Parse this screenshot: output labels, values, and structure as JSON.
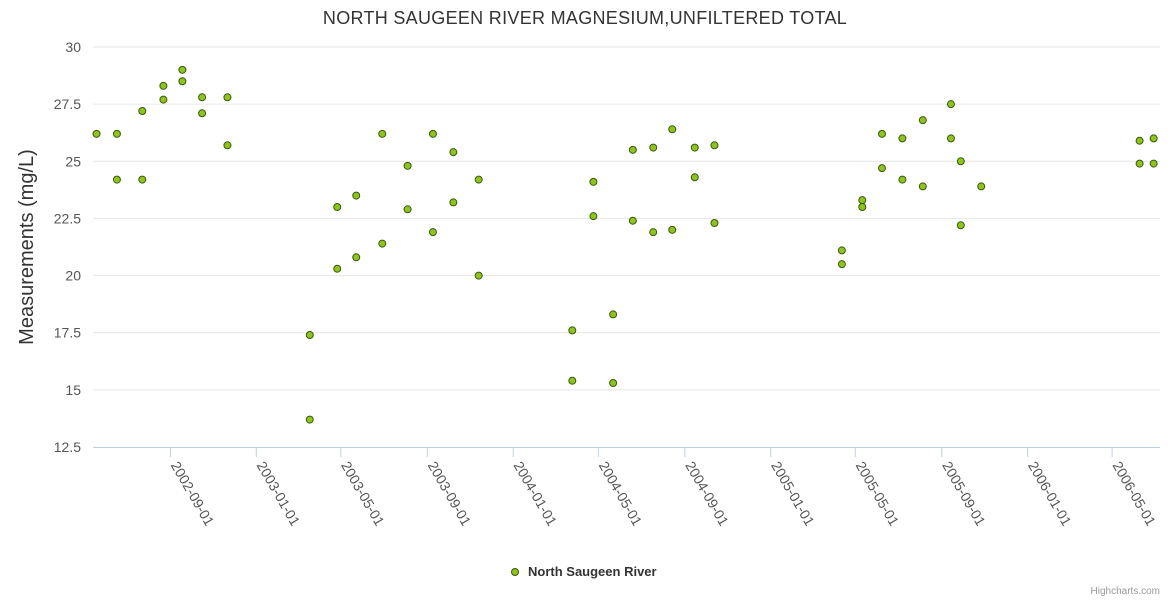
{
  "chart_data": {
    "type": "scatter",
    "title": "NORTH SAUGEEN RIVER MAGNESIUM,UNFILTERED TOTAL",
    "xlabel": "",
    "ylabel": "Measurements (mg/L)",
    "ylim": [
      12.5,
      30
    ],
    "y_ticks": [
      "12.5",
      "15",
      "17.5",
      "20",
      "22.5",
      "25",
      "27.5",
      "30"
    ],
    "x_range": [
      "2002-05-14",
      "2006-07-08"
    ],
    "x_ticks": [
      "2002-09-01",
      "2003-01-01",
      "2003-05-01",
      "2003-09-01",
      "2004-01-01",
      "2004-05-01",
      "2004-09-01",
      "2005-01-01",
      "2005-05-01",
      "2005-09-01",
      "2006-01-01",
      "2006-05-01"
    ],
    "grid": "horizontal",
    "legend_position": "bottom-center",
    "series": [
      {
        "name": "North Saugeen River",
        "color": "#8fc31f",
        "stroke": "#3a5a0a",
        "points": [
          [
            "2002-05-19",
            26.2
          ],
          [
            "2002-06-17",
            26.2
          ],
          [
            "2002-06-17",
            24.2
          ],
          [
            "2002-07-23",
            27.2
          ],
          [
            "2002-07-23",
            24.2
          ],
          [
            "2002-08-22",
            28.3
          ],
          [
            "2002-08-22",
            27.7
          ],
          [
            "2002-09-18",
            29.0
          ],
          [
            "2002-09-18",
            28.5
          ],
          [
            "2002-10-16",
            27.8
          ],
          [
            "2002-10-16",
            27.1
          ],
          [
            "2002-11-21",
            27.8
          ],
          [
            "2002-11-21",
            25.7
          ],
          [
            "2003-03-18",
            17.4
          ],
          [
            "2003-03-18",
            13.7
          ],
          [
            "2003-04-26",
            23.0
          ],
          [
            "2003-04-26",
            20.3
          ],
          [
            "2003-05-23",
            23.5
          ],
          [
            "2003-05-23",
            20.8
          ],
          [
            "2003-06-29",
            26.2
          ],
          [
            "2003-06-29",
            21.4
          ],
          [
            "2003-08-04",
            24.8
          ],
          [
            "2003-08-04",
            22.9
          ],
          [
            "2003-09-09",
            26.2
          ],
          [
            "2003-09-09",
            21.9
          ],
          [
            "2003-10-08",
            25.4
          ],
          [
            "2003-10-08",
            23.2
          ],
          [
            "2003-11-13",
            24.2
          ],
          [
            "2003-11-13",
            20.0
          ],
          [
            "2004-03-25",
            17.6
          ],
          [
            "2004-03-25",
            15.4
          ],
          [
            "2004-04-24",
            24.1
          ],
          [
            "2004-04-24",
            22.6
          ],
          [
            "2004-05-22",
            18.3
          ],
          [
            "2004-05-22",
            15.3
          ],
          [
            "2004-06-19",
            25.5
          ],
          [
            "2004-06-19",
            22.4
          ],
          [
            "2004-07-18",
            25.6
          ],
          [
            "2004-07-18",
            21.9
          ],
          [
            "2004-08-14",
            26.4
          ],
          [
            "2004-08-14",
            22.0
          ],
          [
            "2004-09-15",
            25.6
          ],
          [
            "2004-09-15",
            24.3
          ],
          [
            "2004-10-13",
            25.7
          ],
          [
            "2004-10-13",
            22.3
          ],
          [
            "2005-04-12",
            21.1
          ],
          [
            "2005-04-12",
            20.5
          ],
          [
            "2005-05-11",
            23.3
          ],
          [
            "2005-05-11",
            23.0
          ],
          [
            "2005-06-08",
            26.2
          ],
          [
            "2005-06-08",
            24.7
          ],
          [
            "2005-07-07",
            26.0
          ],
          [
            "2005-07-07",
            24.2
          ],
          [
            "2005-08-05",
            26.8
          ],
          [
            "2005-08-05",
            23.9
          ],
          [
            "2005-09-14",
            27.5
          ],
          [
            "2005-09-14",
            26.0
          ],
          [
            "2005-09-28",
            25.0
          ],
          [
            "2005-09-28",
            22.2
          ],
          [
            "2005-10-27",
            23.9
          ],
          [
            "2006-06-09",
            25.9
          ],
          [
            "2006-06-09",
            24.9
          ],
          [
            "2006-06-29",
            26.0
          ],
          [
            "2006-06-29",
            24.9
          ]
        ]
      }
    ],
    "credits": "Highcharts.com"
  }
}
